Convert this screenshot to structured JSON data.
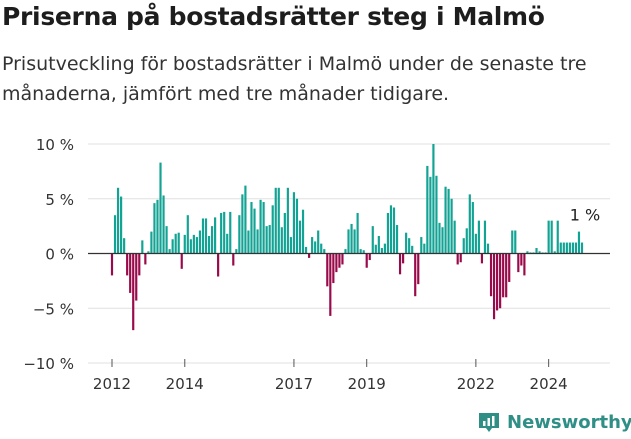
{
  "header": {
    "title": "Priserna på bostadsrätter steg i Malmö",
    "subtitle": "Prisutveckling för bostadsrätter i Malmö under de senaste tre månaderna, jämfört med tre månader tidigare."
  },
  "brand": {
    "name": "Newsworthy",
    "icon": "newsworthy-logo-icon",
    "color": "#2f8f86"
  },
  "colors": {
    "positive": "#13a394",
    "negative": "#990a4a",
    "grid": "#e0e0e0",
    "zero_line": "#333333"
  },
  "chart_data": {
    "type": "bar",
    "x": [
      "2012-01",
      "2012-02",
      "2012-03",
      "2012-04",
      "2012-05",
      "2012-06",
      "2012-07",
      "2012-08",
      "2012-09",
      "2012-10",
      "2012-11",
      "2012-12",
      "2013-01",
      "2013-02",
      "2013-03",
      "2013-04",
      "2013-05",
      "2013-06",
      "2013-07",
      "2013-08",
      "2013-09",
      "2013-10",
      "2013-11",
      "2013-12",
      "2014-01",
      "2014-02",
      "2014-03",
      "2014-04",
      "2014-05",
      "2014-06",
      "2014-07",
      "2014-08",
      "2014-09",
      "2014-10",
      "2014-11",
      "2014-12",
      "2015-01",
      "2015-02",
      "2015-03",
      "2015-04",
      "2015-05",
      "2015-06",
      "2015-07",
      "2015-08",
      "2015-09",
      "2015-10",
      "2015-11",
      "2015-12",
      "2016-01",
      "2016-02",
      "2016-03",
      "2016-04",
      "2016-05",
      "2016-06",
      "2016-07",
      "2016-08",
      "2016-09",
      "2016-10",
      "2016-11",
      "2016-12",
      "2017-01",
      "2017-02",
      "2017-03",
      "2017-04",
      "2017-05",
      "2017-06",
      "2017-07",
      "2017-08",
      "2017-09",
      "2017-10",
      "2017-11",
      "2017-12",
      "2018-01",
      "2018-02",
      "2018-03",
      "2018-04",
      "2018-05",
      "2018-06",
      "2018-07",
      "2018-08",
      "2018-09",
      "2018-10",
      "2018-11",
      "2018-12",
      "2019-01",
      "2019-02",
      "2019-03",
      "2019-04",
      "2019-05",
      "2019-06",
      "2019-07",
      "2019-08",
      "2019-09",
      "2019-10",
      "2019-11",
      "2019-12",
      "2020-01",
      "2020-02",
      "2020-03",
      "2020-04",
      "2020-05",
      "2020-06",
      "2020-07",
      "2020-08",
      "2020-09",
      "2020-10",
      "2020-11",
      "2020-12",
      "2021-01",
      "2021-02",
      "2021-03",
      "2021-04",
      "2021-05",
      "2021-06",
      "2021-07",
      "2021-08",
      "2021-09",
      "2021-10",
      "2021-11",
      "2021-12",
      "2022-01",
      "2022-02",
      "2022-03",
      "2022-04",
      "2022-05",
      "2022-06",
      "2022-07",
      "2022-08",
      "2022-09",
      "2022-10",
      "2022-11",
      "2022-12",
      "2023-01",
      "2023-02",
      "2023-03",
      "2023-04",
      "2023-05",
      "2023-06",
      "2023-07",
      "2023-08",
      "2023-09",
      "2023-10",
      "2023-11",
      "2023-12",
      "2024-01",
      "2024-02",
      "2024-03",
      "2024-04",
      "2024-05",
      "2024-06",
      "2024-07",
      "2024-08",
      "2024-09",
      "2024-10",
      "2024-11",
      "2024-12"
    ],
    "values": [
      -2,
      3.5,
      6,
      5.2,
      1.4,
      -2,
      -3.6,
      -7,
      -4.3,
      -2,
      1.2,
      -1,
      0.2,
      2,
      4.6,
      4.9,
      8.3,
      5.3,
      2.5,
      0.4,
      1.3,
      1.8,
      1.9,
      -1.4,
      1.7,
      3.5,
      1.3,
      1.7,
      1.5,
      2.1,
      3.2,
      3.2,
      1.6,
      2.5,
      3.3,
      -2.1,
      3.7,
      3.8,
      1.8,
      3.8,
      -1.1,
      0.4,
      3.5,
      5.4,
      6.2,
      2.1,
      4.7,
      4.1,
      2.2,
      4.9,
      4.7,
      2.5,
      2.6,
      4.4,
      6,
      6,
      2.4,
      3.7,
      6,
      1.5,
      5.6,
      5,
      3,
      4,
      0.6,
      -0.4,
      1.5,
      1.1,
      2.1,
      0.9,
      0.4,
      -3,
      -5.7,
      -2.7,
      -1.7,
      -1.3,
      -1,
      0.4,
      2.2,
      2.7,
      2.2,
      3.7,
      0.4,
      0.3,
      -1.3,
      -0.6,
      2.5,
      0.8,
      1.6,
      0.5,
      0.9,
      3.7,
      4.4,
      4.2,
      2.6,
      -1.9,
      -0.9,
      1.9,
      1.4,
      0.7,
      -3.9,
      -2.8,
      1.5,
      0.9,
      8,
      7,
      10,
      7.1,
      2.8,
      2.4,
      6.1,
      5.9,
      5,
      3,
      -1,
      -0.8,
      1.4,
      2.3,
      5.4,
      4.7,
      1.8,
      3,
      -0.9,
      3,
      0.9,
      -3.9,
      -6,
      -5.2,
      -5,
      -4,
      -4,
      -2.6,
      2.1,
      2.1,
      -1.7,
      -1.1,
      -2,
      0.2,
      0.1,
      0.1,
      0.5,
      0.2,
      0.1,
      0.1,
      3,
      3,
      0.2,
      3,
      1,
      1,
      1,
      1,
      1,
      1,
      2,
      1
    ],
    "yticks": [
      10,
      5,
      0,
      -5,
      -10
    ],
    "ytick_labels": [
      "10 %",
      "5 %",
      "0 %",
      "−5 %",
      "−10 %"
    ],
    "xticks": [
      "2012",
      "2014",
      "2017",
      "2019",
      "2022",
      "2024"
    ],
    "ylim": [
      -10,
      10
    ],
    "annotation": {
      "x": "2024-12",
      "label": "1 %"
    },
    "xlabel": "",
    "ylabel": "",
    "grid": true,
    "legend": "none"
  }
}
